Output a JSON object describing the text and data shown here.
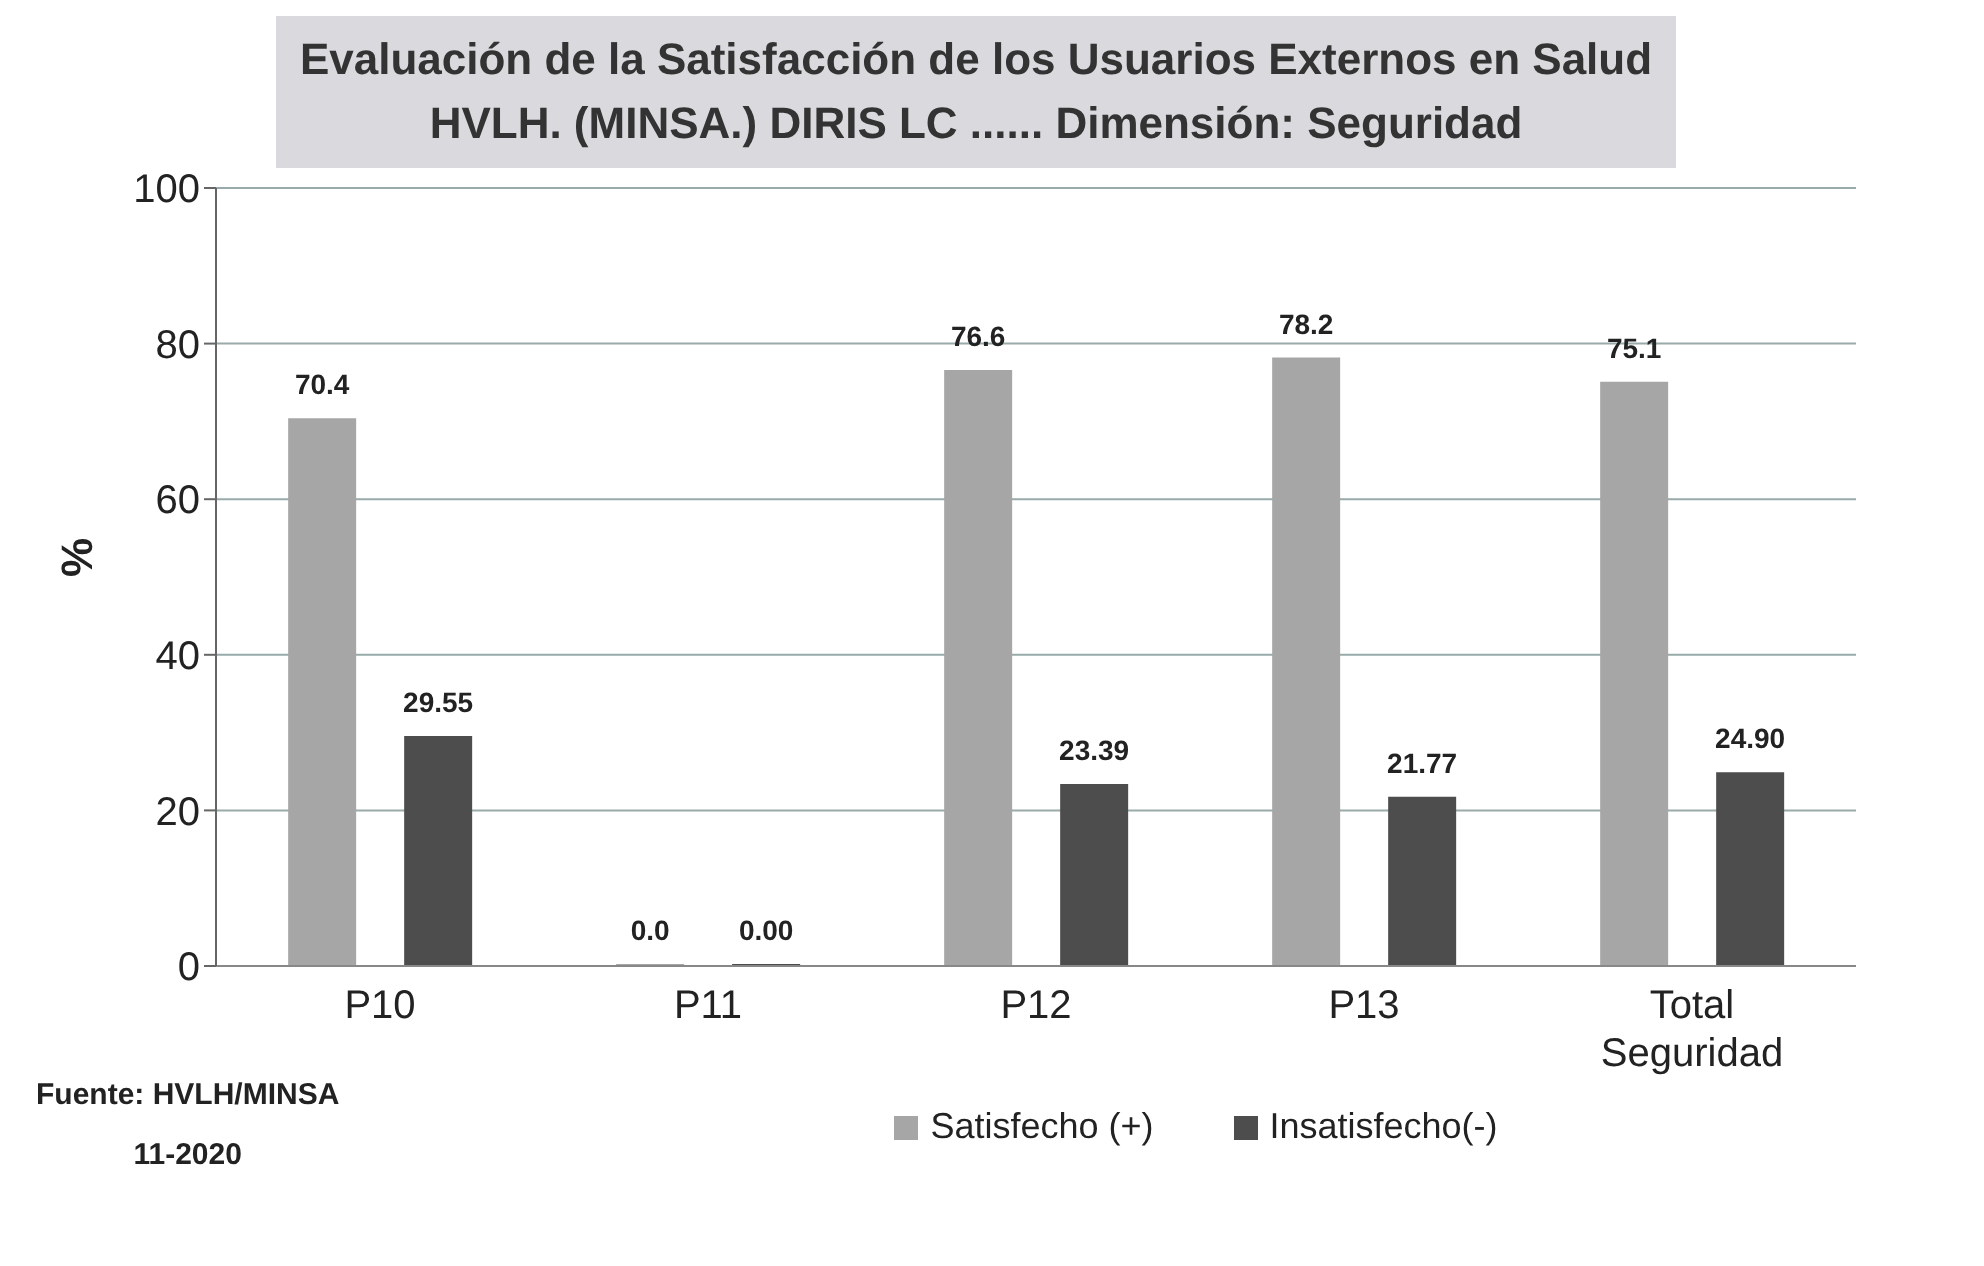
{
  "chart_data": {
    "type": "bar",
    "title": "Evaluación de la Satisfacción de los Usuarios Externos en Salud",
    "subtitle": "HVLH. (MINSA.) DIRIS LC ......  Dimensión: Seguridad",
    "ylabel": "%",
    "categories": [
      "P10",
      "P11",
      "P12",
      "P13",
      "Total Seguridad"
    ],
    "series": [
      {
        "name": "Satisfecho (+)",
        "color": "#a6a6a6",
        "values": [
          70.4,
          0,
          76.6,
          78.2,
          75.1
        ],
        "value_labels": [
          "70.4",
          "0.0",
          "76.6",
          "78.2",
          "75.1"
        ]
      },
      {
        "name": "Insatisfecho(-)",
        "color": "#4d4d4d",
        "values": [
          29.55,
          0,
          23.39,
          21.77,
          24.9
        ],
        "value_labels": [
          "29.55",
          "0.00",
          "23.39",
          "21.77",
          "24.90"
        ]
      }
    ],
    "ylim": [
      0,
      100
    ],
    "yticks": [
      0,
      20,
      40,
      60,
      80,
      100
    ],
    "grid": "y",
    "legend": "bottom",
    "annotations": [
      "Fuente: HVLH/MINSA",
      "11-2020"
    ]
  }
}
